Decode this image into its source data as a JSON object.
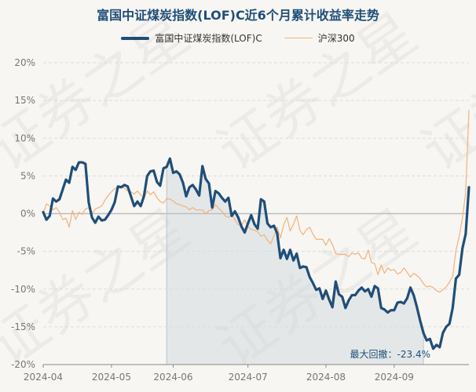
{
  "chart_data": {
    "type": "line",
    "title": "富国中证煤炭指数(LOF)C近6个月累计收益率走势",
    "xlabel": "",
    "ylabel": "",
    "ylim": [
      -20,
      20
    ],
    "y_ticks": [
      "20%",
      "15%",
      "10%",
      "5%",
      "0%",
      "-5%",
      "-10%",
      "-15%",
      "-20%"
    ],
    "x_ticks": [
      "2024-04",
      "2024-05",
      "2024-06",
      "2024-07",
      "2024-08",
      "2024-09"
    ],
    "x_tick_index": [
      0,
      21,
      40,
      63,
      87,
      108
    ],
    "max_drawdown_label": "最大回撤：-23.4%",
    "max_drawdown_range_index": [
      38,
      117
    ],
    "watermark": "证券之星",
    "series": [
      {
        "name": "富国中证煤炭指数(LOF)C",
        "color": "#1f4e79",
        "values": [
          0.2,
          -0.8,
          -0.3,
          2.0,
          1.6,
          1.9,
          3.2,
          4.5,
          4.1,
          6.2,
          5.8,
          6.8,
          6.8,
          6.6,
          1.5,
          -0.5,
          -1.2,
          -0.4,
          -0.9,
          -0.8,
          -0.2,
          0.5,
          1.5,
          3.6,
          3.5,
          3.8,
          3.6,
          2.3,
          1.0,
          1.6,
          1.0,
          2.3,
          5.0,
          5.6,
          5.7,
          4.2,
          3.7,
          6.0,
          6.2,
          7.3,
          5.4,
          5.6,
          5.2,
          4.1,
          2.3,
          3.5,
          3.8,
          3.2,
          2.4,
          6.3,
          4.6,
          4.0,
          0.8,
          3.0,
          2.7,
          2.1,
          1.6,
          2.1,
          -0.3,
          0.3,
          -0.5,
          -1.7,
          -2.5,
          -1.3,
          -0.2,
          -1.4,
          -2.0,
          1.9,
          1.6,
          -1.3,
          -1.8,
          -1.6,
          -2.6,
          -5.9,
          -4.8,
          -6.0,
          -4.8,
          -6.2,
          -5.3,
          -7.2,
          -7.0,
          -7.1,
          -8.4,
          -9.2,
          -10.1,
          -9.9,
          -11.3,
          -10.2,
          -11.4,
          -12.4,
          -9.0,
          -10.7,
          -11.0,
          -12.5,
          -11.5,
          -10.8,
          -10.8,
          -10.2,
          -9.8,
          -10.3,
          -10.0,
          -11.0,
          -9.6,
          -9.9,
          -12.5,
          -12.7,
          -13.1,
          -12.8,
          -12.8,
          -11.8,
          -11.7,
          -11.9,
          -11.2,
          -9.8,
          -10.8,
          -12.4,
          -14.2,
          -15.8,
          -16.8,
          -16.6,
          -17.9,
          -17.4,
          -17.7,
          -15.8,
          -15.0,
          -14.6,
          -12.5,
          -8.6,
          -8.1,
          -4.6,
          -2.7,
          3.5
        ]
      },
      {
        "name": "沪深300",
        "color": "#f2b27a",
        "values": [
          0.0,
          1.3,
          1.0,
          0.5,
          0.8,
          0.2,
          -0.8,
          -0.6,
          -1.8,
          0.4,
          -0.8,
          0.2,
          -0.1,
          0.6,
          0.8,
          0.0,
          0.6,
          0.8,
          1.0,
          1.8,
          2.4,
          2.9,
          3.3,
          3.5,
          3.6,
          3.4,
          3.0,
          2.9,
          2.6,
          3.0,
          2.5,
          2.1,
          3.0,
          2.5,
          2.9,
          2.1,
          1.6,
          1.4,
          2.0,
          1.9,
          1.7,
          1.3,
          1.2,
          1.0,
          0.9,
          0.5,
          0.8,
          0.5,
          0.5,
          0.5,
          0.0,
          0.4,
          0.5,
          1.2,
          0.7,
          0.3,
          -0.3,
          -0.5,
          -0.1,
          -0.8,
          -1.5,
          -1.6,
          -0.8,
          -1.7,
          -2.1,
          -2.2,
          -2.4,
          -3.0,
          -2.8,
          -3.5,
          -4.0,
          -2.9,
          -1.8,
          -3.2,
          -1.5,
          -0.5,
          -2.3,
          -1.4,
          -0.3,
          -2.2,
          -2.8,
          -2.1,
          -1.8,
          -2.7,
          -3.4,
          -3.4,
          -3.4,
          -4.2,
          -3.3,
          -4.1,
          -5.3,
          -5.4,
          -5.4,
          -5.4,
          -5.7,
          -5.2,
          -5.4,
          -5.2,
          -5.9,
          -6.0,
          -4.8,
          -6.5,
          -6.6,
          -8.1,
          -6.8,
          -7.9,
          -7.2,
          -7.5,
          -7.4,
          -8.0,
          -7.8,
          -7.2,
          -7.8,
          -8.4,
          -7.9,
          -8.2,
          -8.6,
          -9.3,
          -9.7,
          -9.6,
          -9.8,
          -10.2,
          -10.4,
          -10.1,
          -9.7,
          -9.1,
          -8.3,
          -4.9,
          -3.0,
          -0.6,
          2.8,
          13.7
        ]
      }
    ]
  }
}
